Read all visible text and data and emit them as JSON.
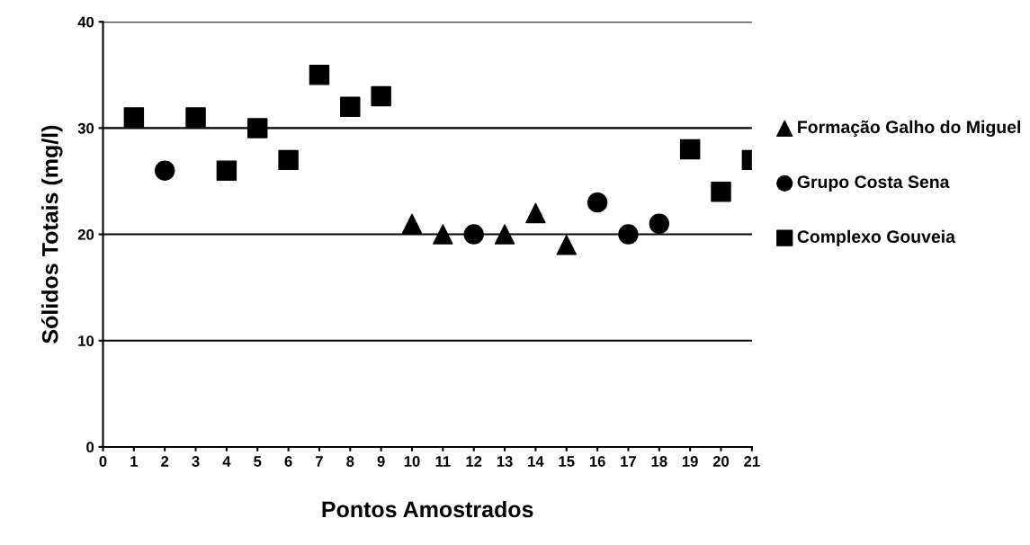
{
  "chart_data": {
    "type": "scatter",
    "xlabel": "Pontos Amostrados",
    "ylabel": "Sólidos Totais (mg/l)",
    "xlim": [
      0,
      21
    ],
    "xticks": [
      0,
      1,
      2,
      3,
      4,
      5,
      6,
      7,
      8,
      9,
      10,
      11,
      12,
      13,
      14,
      15,
      16,
      17,
      18,
      19,
      20,
      21
    ],
    "ylim": [
      0,
      40
    ],
    "yticks": [
      0,
      10,
      20,
      30,
      40
    ],
    "grid": "y",
    "legend": "right",
    "series": [
      {
        "name": "Formação Galho do Miguel",
        "color": "#000000",
        "marker": "triangle",
        "x": [
          10,
          11,
          13,
          14,
          15
        ],
        "values": [
          21,
          20,
          20,
          22,
          19
        ]
      },
      {
        "name": "Grupo Costa Sena",
        "color": "#000000",
        "marker": "circle",
        "x": [
          2,
          12,
          16,
          17,
          18
        ],
        "values": [
          26,
          20,
          23,
          20,
          21
        ]
      },
      {
        "name": "Complexo Gouveia",
        "color": "#000000",
        "marker": "square",
        "x": [
          1,
          3,
          4,
          5,
          6,
          7,
          8,
          9,
          19,
          20,
          21
        ],
        "values": [
          31,
          31,
          26,
          30,
          27,
          35,
          32,
          33,
          28,
          24,
          27
        ]
      }
    ]
  }
}
